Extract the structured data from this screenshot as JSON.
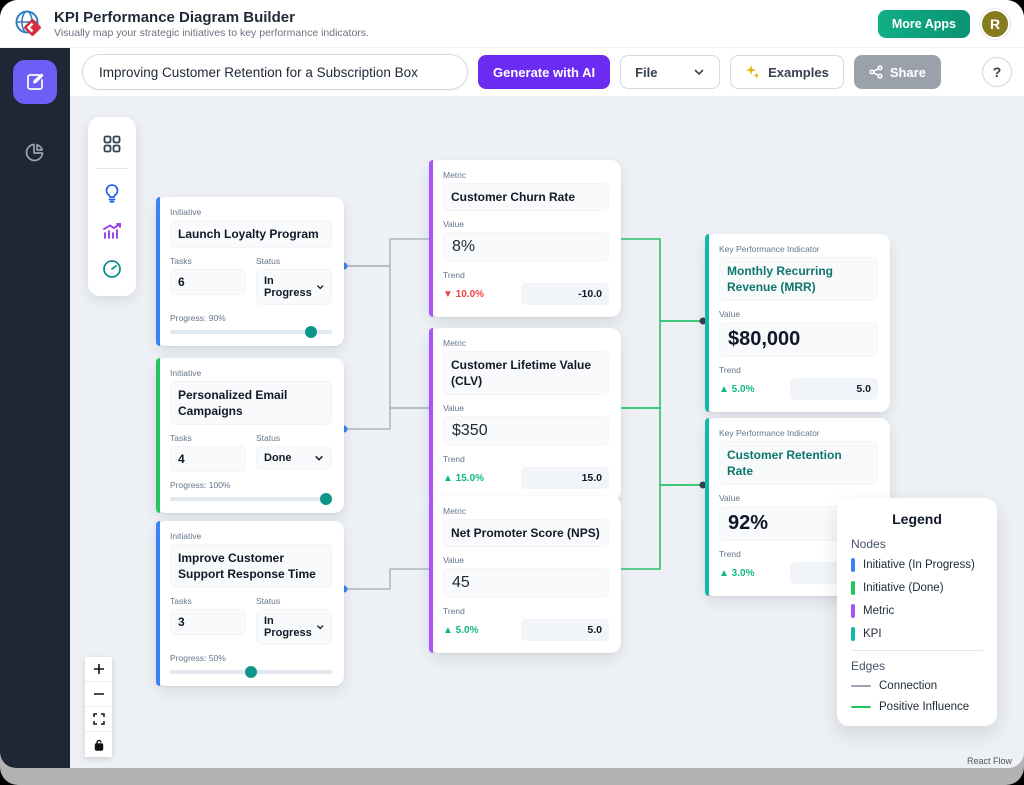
{
  "header": {
    "title": "KPI Performance Diagram Builder",
    "subtitle": "Visually map your strategic initiatives to key performance indicators.",
    "more_apps_label": "More Apps",
    "avatar_initial": "R"
  },
  "toolbar": {
    "diagram_title": "Improving Customer Retention for a Subscription Box",
    "generate_label": "Generate with AI",
    "file_label": "File",
    "examples_label": "Examples",
    "share_label": "Share",
    "help_label": "?"
  },
  "nodes": {
    "initiatives": [
      {
        "type_label": "Initiative",
        "title": "Launch Loyalty Program",
        "tasks_label": "Tasks",
        "tasks": "6",
        "status_label": "Status",
        "status": "In Progress",
        "progress_label": "Progress: 90%",
        "progress_pct": 90,
        "accent": "#3b82f6"
      },
      {
        "type_label": "Initiative",
        "title": "Personalized Email Campaigns",
        "tasks_label": "Tasks",
        "tasks": "4",
        "status_label": "Status",
        "status": "Done",
        "progress_label": "Progress: 100%",
        "progress_pct": 100,
        "accent": "#22c55e"
      },
      {
        "type_label": "Initiative",
        "title": "Improve Customer Support Response Time",
        "tasks_label": "Tasks",
        "tasks": "3",
        "status_label": "Status",
        "status": "In Progress",
        "progress_label": "Progress: 50%",
        "progress_pct": 50,
        "accent": "#3b82f6"
      }
    ],
    "metrics": [
      {
        "type_label": "Metric",
        "title": "Customer Churn Rate",
        "value_label": "Value",
        "value": "8%",
        "trend_label": "Trend",
        "trend_badge": "▼ 10.0%",
        "trend_direction": "down",
        "trend_input": "-10.0",
        "accent": "#a855f7"
      },
      {
        "type_label": "Metric",
        "title": "Customer Lifetime Value (CLV)",
        "value_label": "Value",
        "value": "$350",
        "trend_label": "Trend",
        "trend_badge": "▲ 15.0%",
        "trend_direction": "up",
        "trend_input": "15.0",
        "accent": "#a855f7"
      },
      {
        "type_label": "Metric",
        "title": "Net Promoter Score (NPS)",
        "value_label": "Value",
        "value": "45",
        "trend_label": "Trend",
        "trend_badge": "▲ 5.0%",
        "trend_direction": "up",
        "trend_input": "5.0",
        "accent": "#a855f7"
      }
    ],
    "kpis": [
      {
        "type_label": "Key Performance Indicator",
        "title": "Monthly Recurring Revenue (MRR)",
        "value_label": "Value",
        "value": "$80,000",
        "trend_label": "Trend",
        "trend_badge": "▲ 5.0%",
        "trend_direction": "up",
        "trend_input": "5.0",
        "accent": "#14b8a6"
      },
      {
        "type_label": "Key Performance Indicator",
        "title": "Customer Retention Rate",
        "value_label": "Value",
        "value": "92%",
        "trend_label": "Trend",
        "trend_badge": "▲ 3.0%",
        "trend_direction": "up",
        "trend_input": "",
        "accent": "#14b8a6"
      }
    ]
  },
  "legend": {
    "title": "Legend",
    "nodes_heading": "Nodes",
    "items": [
      {
        "label": "Initiative (In Progress)",
        "color": "#3b82f6"
      },
      {
        "label": "Initiative (Done)",
        "color": "#22c55e"
      },
      {
        "label": "Metric",
        "color": "#a855f7"
      },
      {
        "label": "KPI",
        "color": "#14b8a6"
      }
    ],
    "edges_heading": "Edges",
    "edge_items": [
      {
        "label": "Connection",
        "color": "#9ca3af"
      },
      {
        "label": "Positive Influence",
        "color": "#22c55e"
      }
    ]
  },
  "attribution": "React Flow",
  "colors": {
    "edge_connection": "#b1b5bd",
    "edge_positive": "#2bc06a",
    "handle_initiative": "#3b82f6",
    "handle_metric_out": "#a855f7",
    "handle_in": "#374151"
  }
}
